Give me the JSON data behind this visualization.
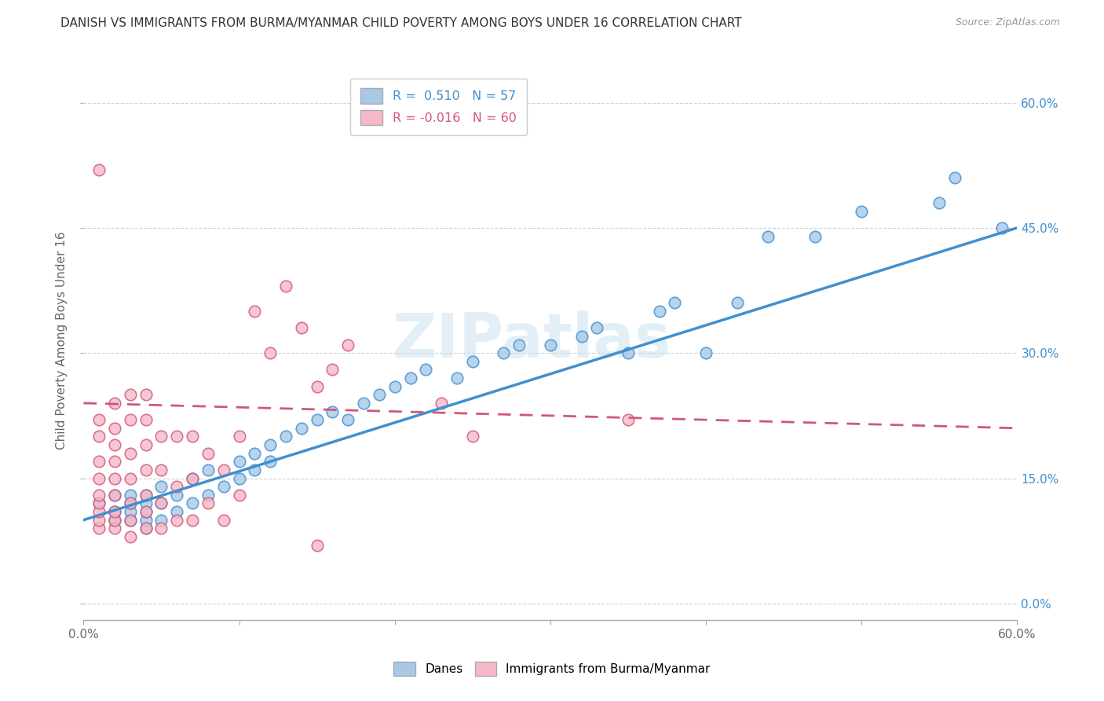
{
  "title": "DANISH VS IMMIGRANTS FROM BURMA/MYANMAR CHILD POVERTY AMONG BOYS UNDER 16 CORRELATION CHART",
  "source": "Source: ZipAtlas.com",
  "ylabel": "Child Poverty Among Boys Under 16",
  "xlim": [
    0.0,
    0.6
  ],
  "ylim": [
    -0.02,
    0.65
  ],
  "yticks": [
    0.0,
    0.15,
    0.3,
    0.45,
    0.6
  ],
  "blue_color": "#a8c8e8",
  "blue_color_line": "#4090d0",
  "pink_color": "#f5b8c8",
  "pink_color_line": "#d05878",
  "blue_R": 0.51,
  "blue_N": 57,
  "pink_R": -0.016,
  "pink_N": 60,
  "legend_label_blue": "Danes",
  "legend_label_pink": "Immigrants from Burma/Myanmar",
  "background_color": "#ffffff",
  "grid_color": "#d0d0d0",
  "blue_scatter_x": [
    0.01,
    0.02,
    0.02,
    0.02,
    0.03,
    0.03,
    0.03,
    0.03,
    0.04,
    0.04,
    0.04,
    0.04,
    0.04,
    0.05,
    0.05,
    0.05,
    0.06,
    0.06,
    0.07,
    0.07,
    0.08,
    0.08,
    0.09,
    0.1,
    0.1,
    0.11,
    0.11,
    0.12,
    0.12,
    0.13,
    0.14,
    0.15,
    0.16,
    0.17,
    0.18,
    0.19,
    0.2,
    0.21,
    0.22,
    0.24,
    0.25,
    0.27,
    0.28,
    0.3,
    0.32,
    0.33,
    0.35,
    0.37,
    0.38,
    0.4,
    0.42,
    0.44,
    0.47,
    0.5,
    0.55,
    0.56,
    0.59
  ],
  "blue_scatter_y": [
    0.12,
    0.1,
    0.11,
    0.13,
    0.1,
    0.11,
    0.12,
    0.13,
    0.09,
    0.1,
    0.11,
    0.12,
    0.13,
    0.1,
    0.12,
    0.14,
    0.11,
    0.13,
    0.12,
    0.15,
    0.13,
    0.16,
    0.14,
    0.15,
    0.17,
    0.16,
    0.18,
    0.17,
    0.19,
    0.2,
    0.21,
    0.22,
    0.23,
    0.22,
    0.24,
    0.25,
    0.26,
    0.27,
    0.28,
    0.27,
    0.29,
    0.3,
    0.31,
    0.31,
    0.32,
    0.33,
    0.3,
    0.35,
    0.36,
    0.3,
    0.36,
    0.44,
    0.44,
    0.47,
    0.48,
    0.51,
    0.45
  ],
  "pink_scatter_x": [
    0.01,
    0.01,
    0.01,
    0.01,
    0.01,
    0.01,
    0.01,
    0.01,
    0.01,
    0.01,
    0.02,
    0.02,
    0.02,
    0.02,
    0.02,
    0.02,
    0.02,
    0.02,
    0.02,
    0.03,
    0.03,
    0.03,
    0.03,
    0.03,
    0.03,
    0.03,
    0.04,
    0.04,
    0.04,
    0.04,
    0.04,
    0.04,
    0.04,
    0.05,
    0.05,
    0.05,
    0.05,
    0.06,
    0.06,
    0.06,
    0.07,
    0.07,
    0.07,
    0.08,
    0.08,
    0.09,
    0.09,
    0.1,
    0.1,
    0.11,
    0.12,
    0.13,
    0.14,
    0.15,
    0.15,
    0.16,
    0.17,
    0.23,
    0.25,
    0.35
  ],
  "pink_scatter_y": [
    0.09,
    0.1,
    0.11,
    0.12,
    0.13,
    0.15,
    0.17,
    0.2,
    0.22,
    0.52,
    0.09,
    0.1,
    0.11,
    0.13,
    0.15,
    0.17,
    0.19,
    0.21,
    0.24,
    0.08,
    0.1,
    0.12,
    0.15,
    0.18,
    0.22,
    0.25,
    0.09,
    0.11,
    0.13,
    0.16,
    0.19,
    0.22,
    0.25,
    0.09,
    0.12,
    0.16,
    0.2,
    0.1,
    0.14,
    0.2,
    0.1,
    0.15,
    0.2,
    0.12,
    0.18,
    0.1,
    0.16,
    0.13,
    0.2,
    0.35,
    0.3,
    0.38,
    0.33,
    0.26,
    0.07,
    0.28,
    0.31,
    0.24,
    0.2,
    0.22
  ],
  "blue_trend_x": [
    0.0,
    0.6
  ],
  "blue_trend_y_start": 0.1,
  "blue_trend_y_end": 0.45,
  "pink_trend_x": [
    0.0,
    0.6
  ],
  "pink_trend_y_start": 0.24,
  "pink_trend_y_end": 0.21
}
